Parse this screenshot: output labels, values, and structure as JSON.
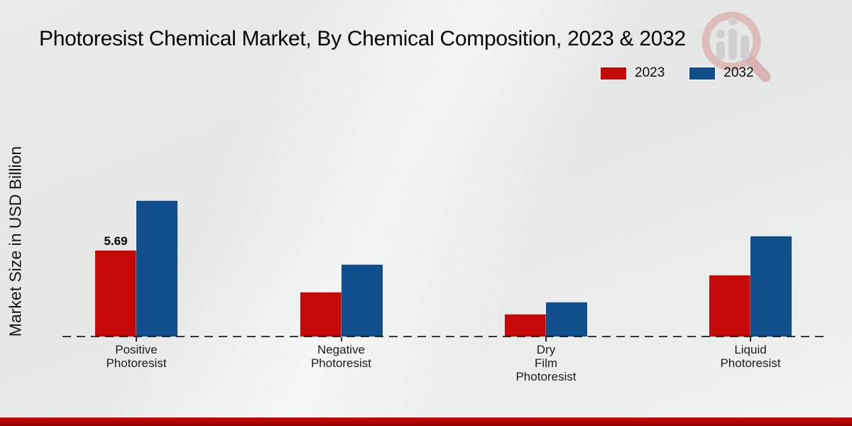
{
  "title": "Photoresist Chemical Market, By Chemical Composition, 2023 & 2032",
  "y_axis_label": "Market Size in USD Billion",
  "legend": {
    "position": "top-right",
    "items": [
      {
        "label": "2023",
        "color": "#c50808"
      },
      {
        "label": "2032",
        "color": "#114e8c"
      }
    ]
  },
  "colors": {
    "series_2023": "#c50808",
    "series_2032": "#114e8c",
    "footer_strip": "#b10404",
    "background": "#e9eaea",
    "text": "#0e0e0e"
  },
  "watermark_icon": "magnifier-bar-chart-logo",
  "chart_data": {
    "type": "bar",
    "title": "Photoresist Chemical Market, By Chemical Composition, 2023 & 2032",
    "xlabel": "",
    "ylabel": "Market Size in USD Billion",
    "categories": [
      "Positive Photoresist",
      "Negative Photoresist",
      "Dry Film Photoresist",
      "Liquid Photoresist"
    ],
    "category_label_lines": [
      [
        "Positive",
        "Photoresist"
      ],
      [
        "Negative",
        "Photoresist"
      ],
      [
        "Dry",
        "Film",
        "Photoresist"
      ],
      [
        "Liquid",
        "Photoresist"
      ]
    ],
    "series": [
      {
        "name": "2023",
        "color": "#c50808",
        "values": [
          5.69,
          2.95,
          1.5,
          4.05
        ]
      },
      {
        "name": "2032",
        "color": "#114e8c",
        "values": [
          8.95,
          4.75,
          2.3,
          6.6
        ]
      }
    ],
    "value_labels": [
      {
        "series_index": 0,
        "category_index": 0,
        "text": "5.69"
      }
    ],
    "ylim": [
      0,
      10
    ],
    "grid": false,
    "y_ticks_shown": false,
    "baseline_style": "dashed",
    "legend_position": "top-right"
  }
}
